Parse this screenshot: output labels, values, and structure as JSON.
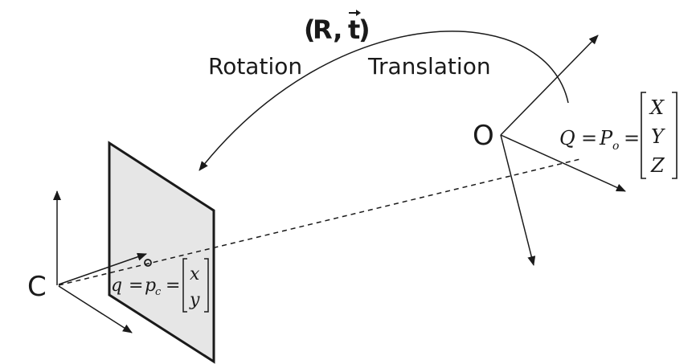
{
  "diagram": {
    "transform_label_R": "R,",
    "transform_label_t": "t",
    "transform_open_paren": "(",
    "transform_close_paren": ")",
    "rotation_label": "Rotation",
    "translation_label": "Translation",
    "camera_center_label": "C",
    "object_origin_label": "O",
    "image_point_equation": {
      "q": "q",
      "equals_1": "=",
      "p": "p",
      "p_subscript": "c",
      "equals_2": "=",
      "vector": [
        "x",
        "y"
      ]
    },
    "world_point_equation": {
      "Q": "Q",
      "equals_1": "=",
      "P": "P",
      "P_subscript": "o",
      "equals_2": "=",
      "vector": [
        "X",
        "Y",
        "Z"
      ]
    }
  },
  "colors": {
    "ink": "#1a1a1a",
    "image_plane_fill": "#e6e6e6"
  }
}
